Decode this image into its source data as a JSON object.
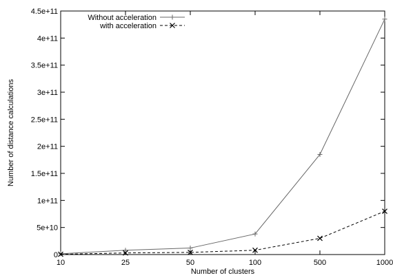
{
  "chart_data": {
    "type": "line",
    "title": "",
    "xlabel": "Number of clusters",
    "ylabel": "Number of distance calculations",
    "categories": [
      "10",
      "25",
      "50",
      "100",
      "500",
      "1000"
    ],
    "ylim": [
      0,
      450000000000
    ],
    "yticks": [
      {
        "value": 0,
        "label": "0"
      },
      {
        "value": 50000000000,
        "label": "5e+10"
      },
      {
        "value": 100000000000,
        "label": "1e+11"
      },
      {
        "value": 150000000000,
        "label": "1.5e+11"
      },
      {
        "value": 200000000000,
        "label": "2e+11"
      },
      {
        "value": 250000000000,
        "label": "2.5e+11"
      },
      {
        "value": 300000000000,
        "label": "3e+11"
      },
      {
        "value": 350000000000,
        "label": "3.5e+11"
      },
      {
        "value": 400000000000,
        "label": "4e+11"
      },
      {
        "value": 450000000000,
        "label": "4.5e+11"
      }
    ],
    "grid": false,
    "legend_position": "top-left",
    "series": [
      {
        "name": "Without acceleration",
        "values": [
          1500000000,
          8000000000,
          12000000000,
          38000000000,
          185000000000,
          435000000000
        ],
        "marker": "plus",
        "dash": "solid",
        "color": "#666666"
      },
      {
        "name": "with acceleration",
        "values": [
          500000000,
          3000000000,
          4000000000,
          8000000000,
          30000000000,
          80000000000
        ],
        "marker": "cross",
        "dash": "dashed",
        "color": "#000000"
      }
    ]
  }
}
